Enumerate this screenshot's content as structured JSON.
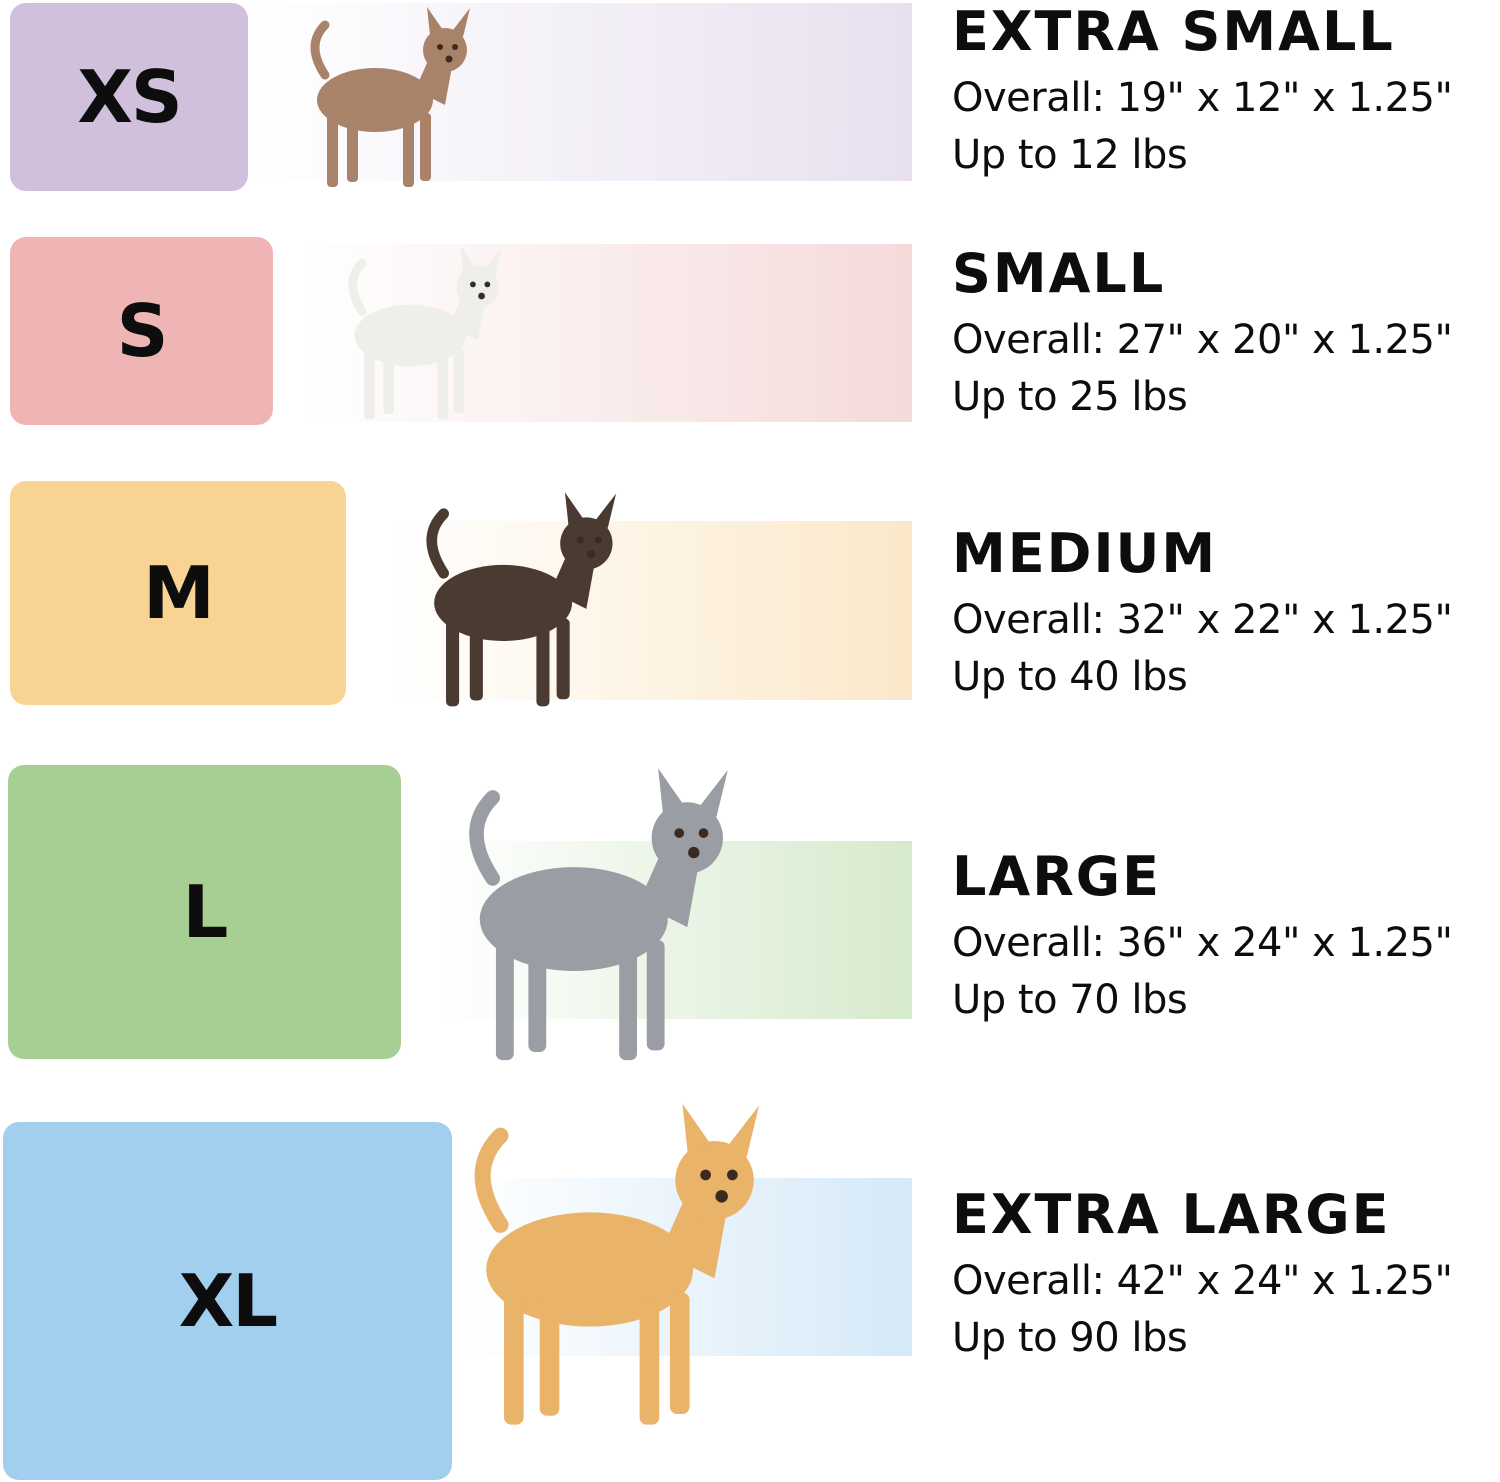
{
  "sizes": [
    {
      "code": "XS",
      "title": "EXTRA SMALL",
      "overall": "Overall: 19\" x 12\" x 1.25\"",
      "weight": "Up to 12 lbs",
      "color": "#d0c0dc",
      "band_color": "#e8e0ef",
      "dog_color": "#a9826a"
    },
    {
      "code": "S",
      "title": "SMALL",
      "overall": "Overall: 27\" x 20\" x 1.25\"",
      "weight": "Up to 25 lbs",
      "color": "#efb5b5",
      "band_color": "#f5dada",
      "dog_color": "#eeeeea"
    },
    {
      "code": "M",
      "title": "MEDIUM",
      "overall": "Overall: 32\" x 22\" x 1.25\"",
      "weight": "Up to 40 lbs",
      "color": "#f9d394",
      "band_color": "#fbe8c9",
      "dog_color": "#4a3a32"
    },
    {
      "code": "L",
      "title": "LARGE",
      "overall": "Overall: 36\" x 24\" x 1.25\"",
      "weight": "Up to 70 lbs",
      "color": "#a8cf93",
      "band_color": "#d6eacd",
      "dog_color": "#9a9ea4"
    },
    {
      "code": "XL",
      "title": "EXTRA LARGE",
      "overall": "Overall: 42\" x 24\" x 1.25\"",
      "weight": "Up to 90 lbs",
      "color": "#a3cfee",
      "band_color": "#d5e9f8",
      "dog_color": "#e9b36a"
    }
  ]
}
